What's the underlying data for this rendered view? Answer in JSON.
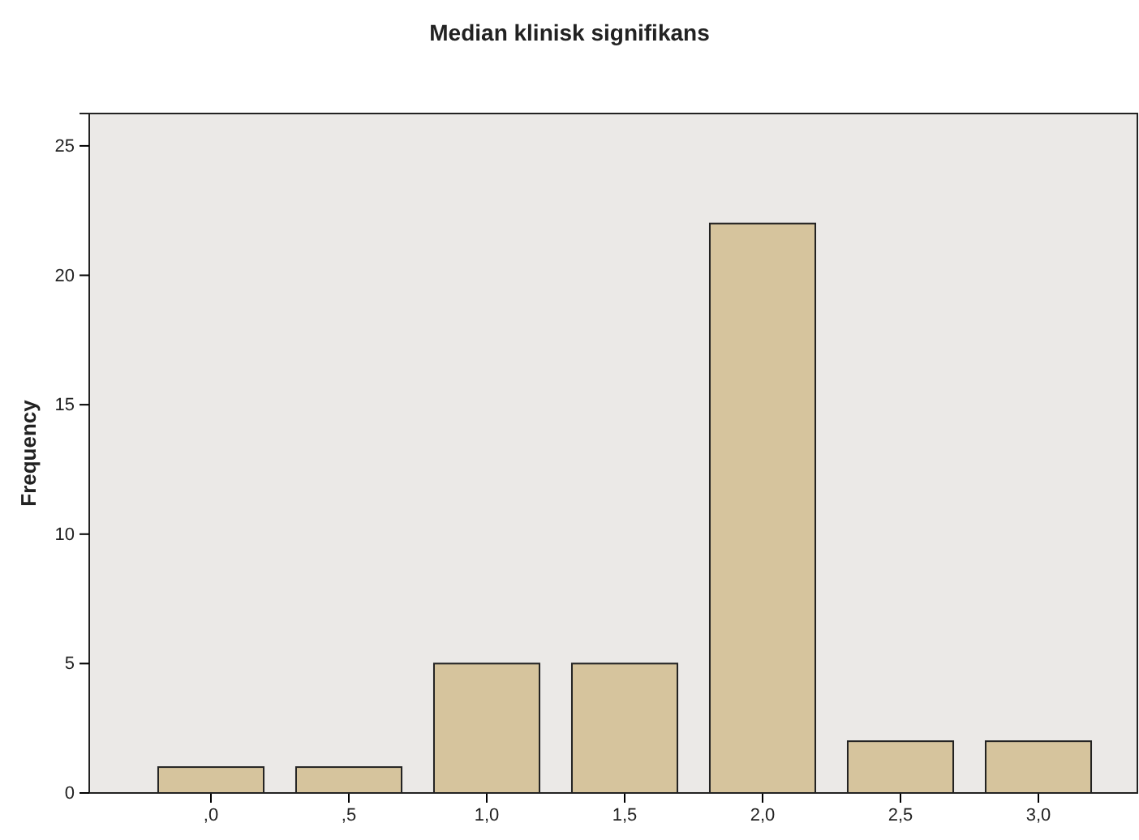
{
  "chart_data": {
    "type": "bar",
    "title": "Median klinisk signifikans",
    "ylabel": "Frequency",
    "categories": [
      ",0",
      ",5",
      "1,0",
      "1,5",
      "2,0",
      "2,5",
      "3,0"
    ],
    "values": [
      1,
      1,
      5,
      5,
      22,
      2,
      2
    ],
    "color": "#d6c49d",
    "ylim": [
      0,
      26.25
    ],
    "yticks": [
      0,
      5,
      10,
      15,
      20,
      25
    ],
    "grid": false
  }
}
